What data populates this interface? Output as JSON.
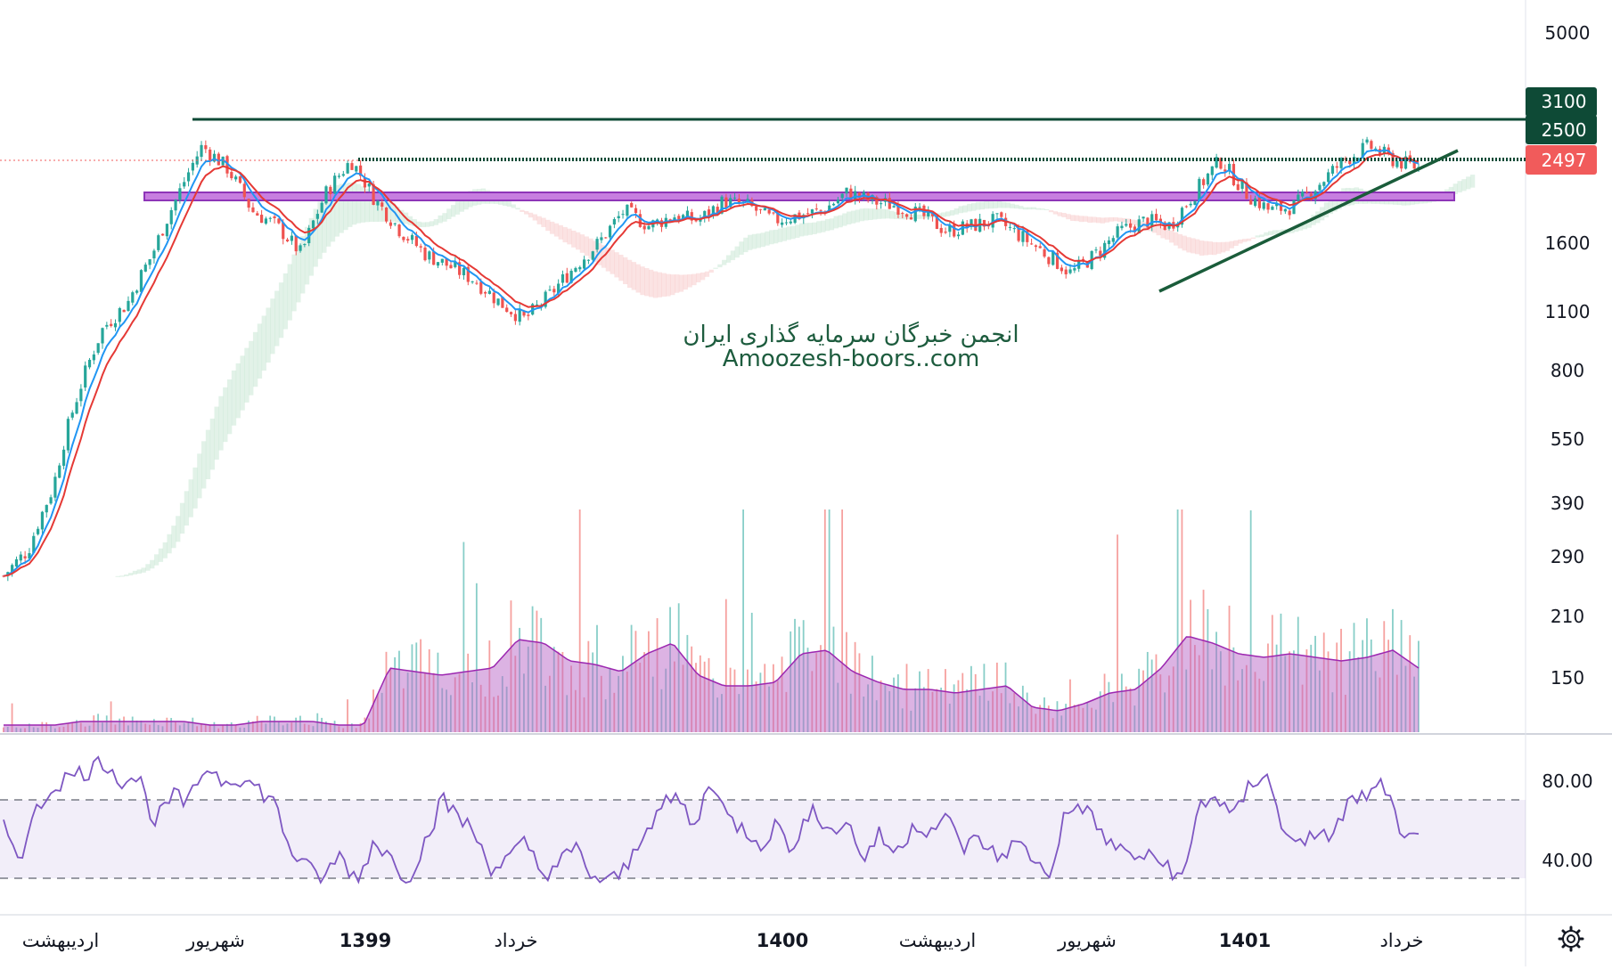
{
  "chart_data": {
    "type": "candlestick",
    "price_axis": {
      "scale": "log",
      "ticks": [
        "5000",
        "1600",
        "1100",
        "800",
        "550",
        "390",
        "290",
        "210",
        "150"
      ]
    },
    "price_tags": [
      {
        "label": "3100",
        "value": 3100,
        "color": "#0e4a36"
      },
      {
        "label": "2500",
        "value": 2500,
        "color": "#0e4a36"
      },
      {
        "label": "2497",
        "value": 2497,
        "color": "#f15b5b"
      }
    ],
    "rsi_axis": {
      "ticks": [
        "80.00",
        "40.00"
      ],
      "band": [
        30,
        70
      ]
    },
    "time_axis": {
      "labels": [
        {
          "text": "اردیبهشت",
          "year": false
        },
        {
          "text": "شهریور",
          "year": false
        },
        {
          "text": "1399",
          "year": true
        },
        {
          "text": "خرداد",
          "year": false
        },
        {
          "text": "1400",
          "year": true
        },
        {
          "text": "اردیبهشت",
          "year": false
        },
        {
          "text": "شهریور",
          "year": false
        },
        {
          "text": "1401",
          "year": true
        },
        {
          "text": "خرداد",
          "year": false
        }
      ]
    },
    "horizontal_levels": [
      {
        "value": 3100,
        "style": "solid",
        "color": "#0e4a36"
      },
      {
        "value": 2500,
        "style": "dotted",
        "color": "#0e4a36"
      },
      {
        "value": 2050,
        "style": "zone",
        "color": "#b65cd6"
      }
    ],
    "trendline": {
      "from_price": 1250,
      "to_price": 2600,
      "color": "#1a5c3a"
    },
    "price_path": [
      260,
      300,
      420,
      700,
      1000,
      1150,
      1500,
      2050,
      2700,
      2400,
      1900,
      1750,
      1500,
      2100,
      2500,
      2000,
      1700,
      1500,
      1400,
      1300,
      1150,
      1050,
      1200,
      1400,
      1600,
      1900,
      1750,
      1850,
      1800,
      2000,
      1950,
      1800,
      1850,
      1900,
      2100,
      2000,
      1950,
      1850,
      1700,
      1750,
      1800,
      1650,
      1500,
      1350,
      1500,
      1700,
      1800,
      1750,
      2100,
      2500,
      2100,
      1900,
      1950,
      2200,
      2500,
      2700,
      2500,
      2400
    ],
    "volume_profile": [
      2,
      2,
      2,
      3,
      3,
      3,
      3,
      3,
      2,
      2,
      3,
      3,
      3,
      2,
      2,
      18,
      17,
      16,
      17,
      18,
      26,
      25,
      20,
      19,
      17,
      22,
      25,
      16,
      13,
      13,
      14,
      22,
      23,
      17,
      14,
      12,
      12,
      11,
      12,
      13,
      7,
      6,
      8,
      11,
      12,
      18,
      27,
      25,
      22,
      21,
      22,
      21,
      20,
      21,
      23,
      18
    ],
    "rsi_series": [
      55,
      42,
      65,
      78,
      82,
      85,
      90,
      80,
      82,
      58,
      72,
      68,
      88,
      80,
      82,
      76,
      70,
      45,
      35,
      30,
      42,
      28,
      50,
      40,
      30,
      48,
      70,
      62,
      52,
      35,
      40,
      48,
      32,
      38,
      45,
      30,
      28,
      35,
      55,
      65,
      72,
      55,
      82,
      60,
      55,
      48,
      58,
      42,
      70,
      52,
      60,
      40,
      52,
      42,
      58,
      55,
      60,
      46,
      50,
      40,
      48,
      42,
      30,
      62,
      68,
      55,
      45,
      42,
      40,
      38,
      28,
      68,
      72,
      60,
      78,
      85,
      50,
      52,
      48,
      55,
      70,
      72,
      78,
      48,
      50
    ]
  },
  "watermark": {
    "line1": "انجمن خبرگان سرمایه گذاری ایران",
    "line2": "Amoozesh-boors..com"
  },
  "icons": {
    "settings": "gear-icon"
  }
}
